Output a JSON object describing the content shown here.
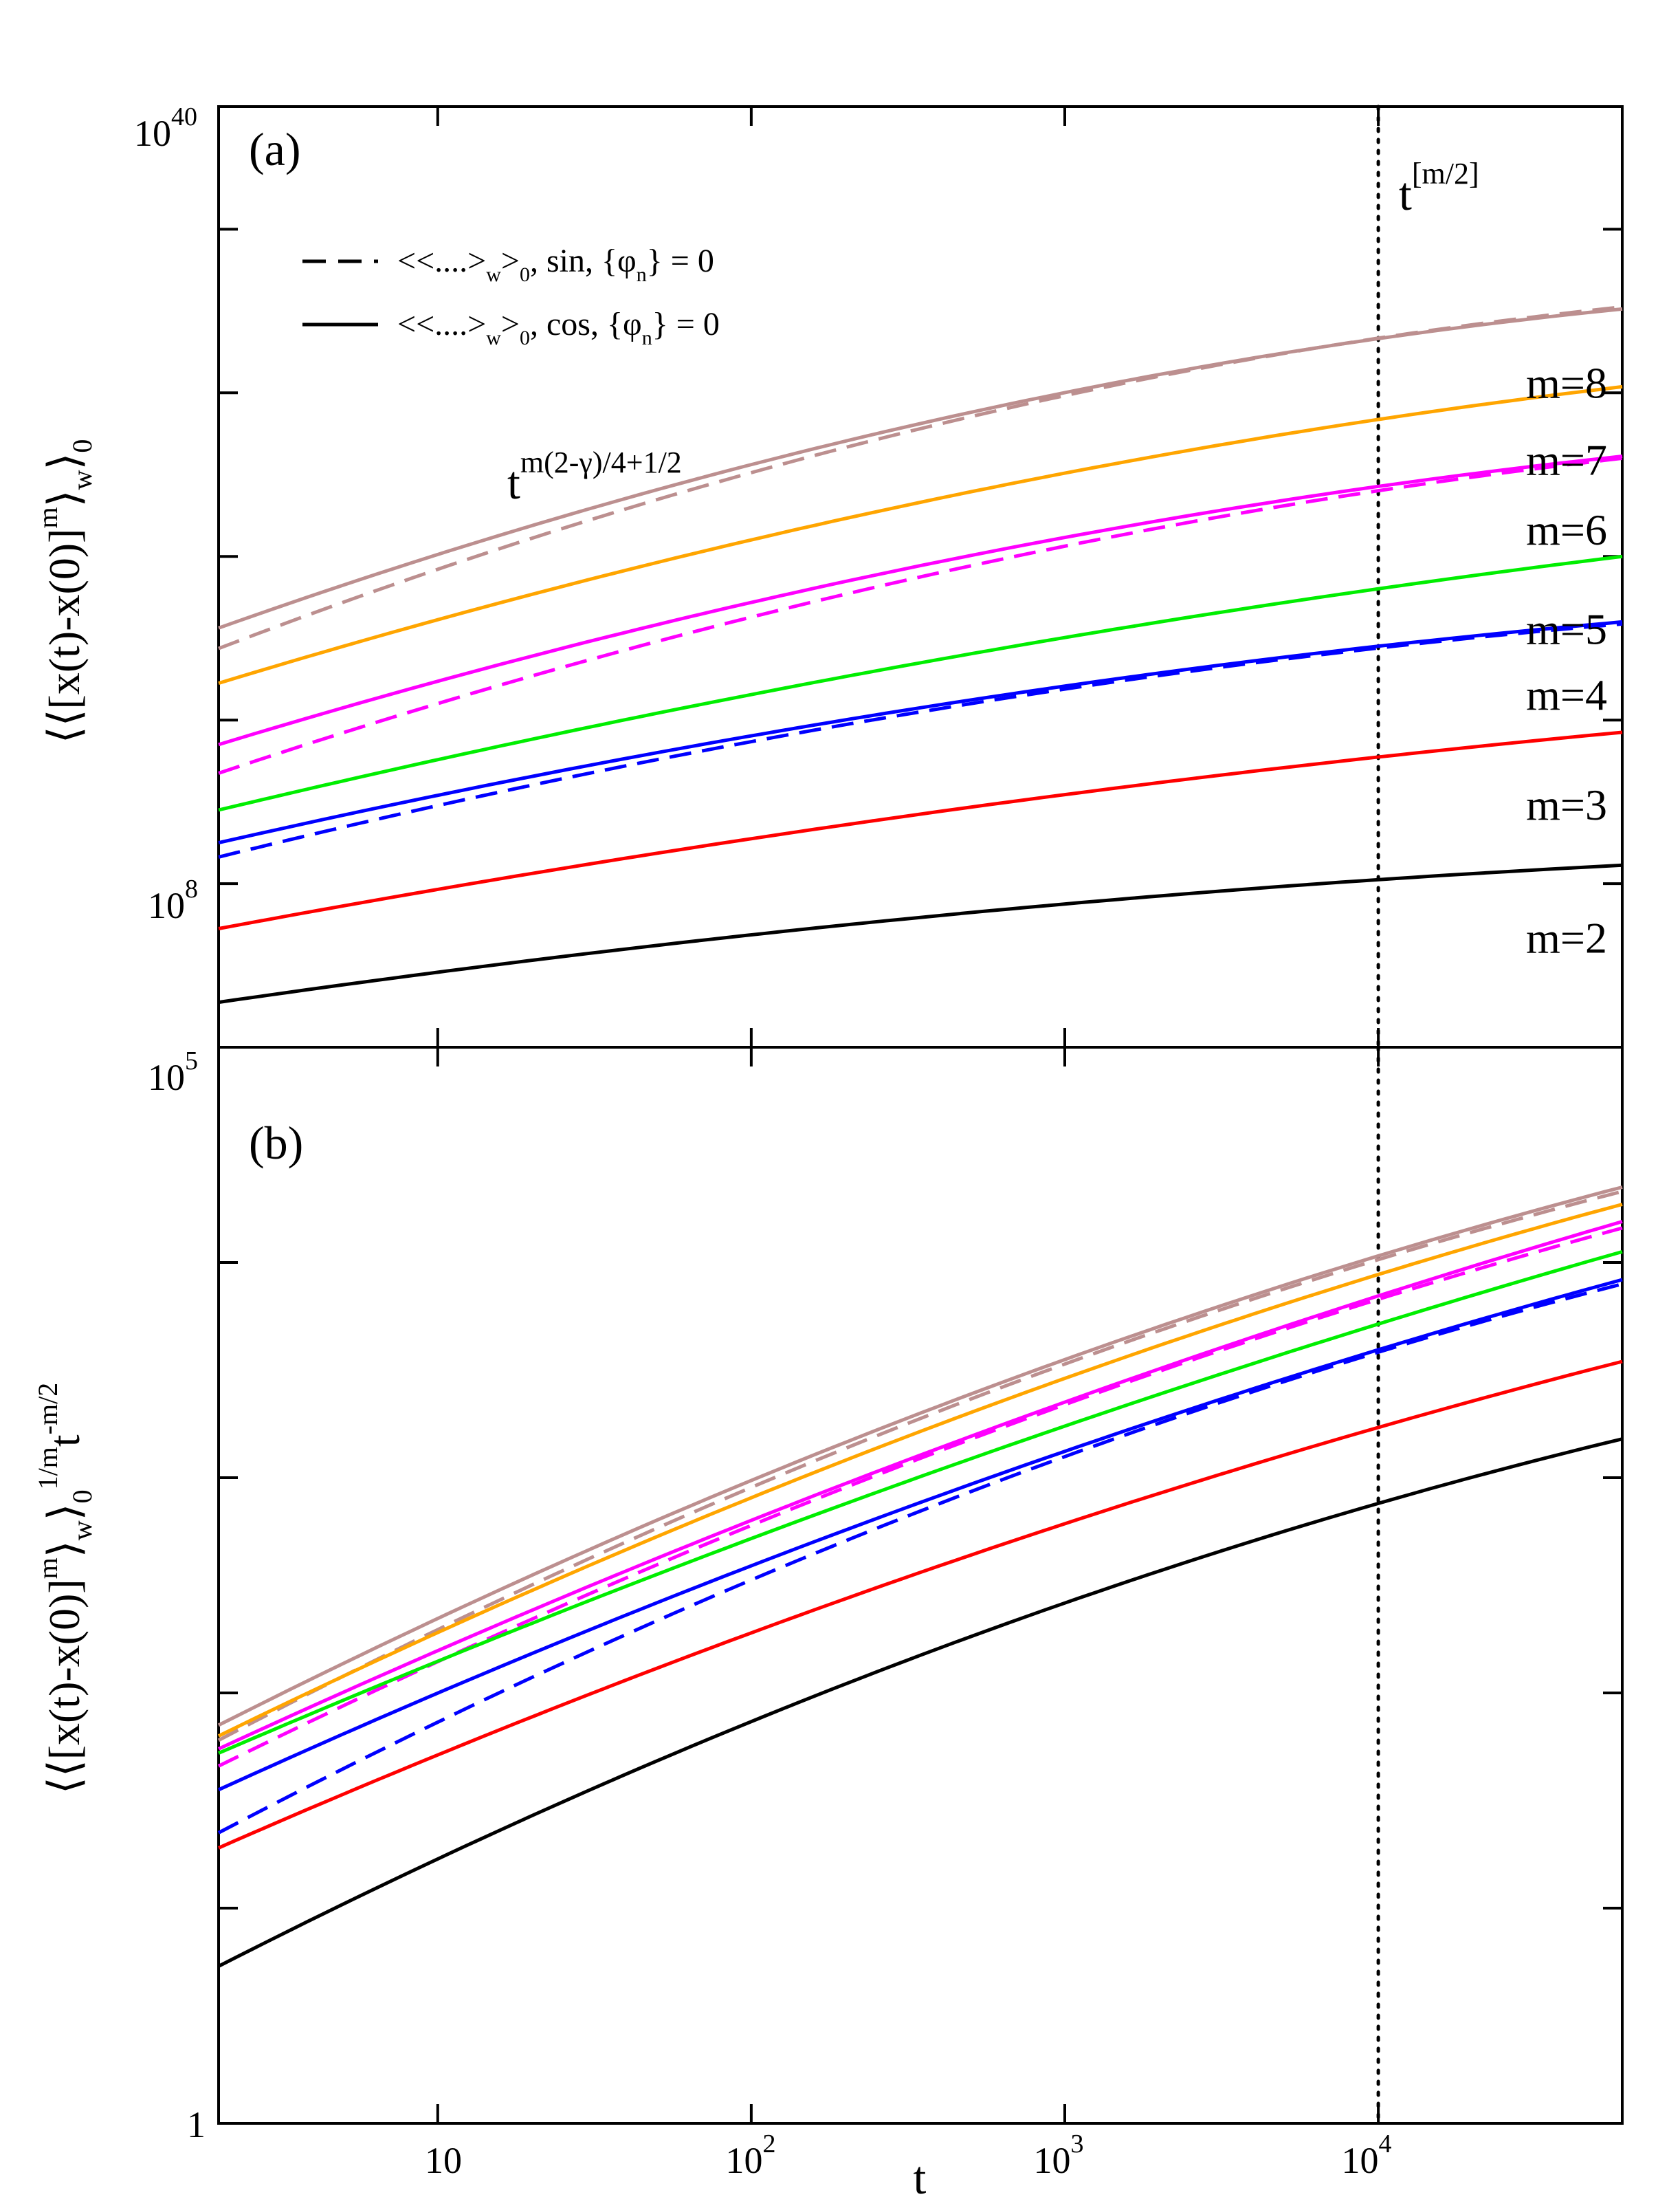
{
  "chart_data": [
    {
      "type": "line",
      "panel": "(a)",
      "x_scale": "log",
      "xlim": [
        2,
        60000
      ],
      "ylabel": "⟨⟨[x(t)-x(0)]^m⟩_w⟩_0",
      "ylabel_main": "⟨⟨[x(t)-x(0)]",
      "ylabel_sup": "m",
      "ylabel_mid": "⟩",
      "ylabel_sub1": "w",
      "ylabel_end": "⟩",
      "ylabel_sub2": "0",
      "y_scale": "log",
      "ylim_log10": [
        0,
        46
      ],
      "y_tick_labels": [
        {
          "value_log10": 40,
          "base": "10",
          "exp": "40"
        },
        {
          "value_log10": 8,
          "base": "10",
          "exp": "8"
        }
      ],
      "legend": [
        {
          "style": "dashed",
          "text_a": "<<....>",
          "sub_a": "w",
          "text_b": ">",
          "sub_b": "0",
          "text_c": ", sin, {φ",
          "sub_c": "n",
          "text_d": "} = 0"
        },
        {
          "style": "solid",
          "text_a": "<<....>",
          "sub_a": "w",
          "text_b": ">",
          "sub_b": "0",
          "text_c": ", cos, {φ",
          "sub_c": "n",
          "text_d": "} = 0"
        }
      ],
      "annotation_growth": {
        "base": "t",
        "exp": "m(2-γ)/4+1/2"
      },
      "annotation_vline": {
        "base": "t",
        "exp": "[m/2]"
      },
      "vline_x": 10000,
      "series": [
        {
          "name": "m=8",
          "label": "m=8",
          "color": "#bc8f8f",
          "label_t": 0.6,
          "solid": {
            "x": [
              2,
              60000
            ],
            "y": [
              20.5,
              36.1
            ],
            "bulge": 2.2
          },
          "dashed": {
            "x": [
              2,
              60000
            ],
            "y": [
              19.5,
              36.2
            ],
            "bulge": 2.4
          }
        },
        {
          "name": "m=7",
          "label": "m=7",
          "color": "#ffa500",
          "label_t": 0.55,
          "solid": {
            "x": [
              2,
              60000
            ],
            "y": [
              17.8,
              32.3
            ],
            "bulge": 1.6
          }
        },
        {
          "name": "m=6",
          "label": "m=6",
          "color": "#ff00ff",
          "label_t": 0.5,
          "solid": {
            "x": [
              2,
              60000
            ],
            "y": [
              14.8,
              28.9
            ],
            "bulge": 1.7
          },
          "dashed": {
            "x": [
              2,
              60000
            ],
            "y": [
              13.4,
              28.8
            ],
            "bulge": 1.9
          }
        },
        {
          "name": "m=5",
          "label": "m=5",
          "color": "#00ee00",
          "label_t": 0.42,
          "solid": {
            "x": [
              2,
              60000
            ],
            "y": [
              11.6,
              24.0
            ],
            "bulge": 1.0
          }
        },
        {
          "name": "m=4",
          "label": "m=4",
          "color": "#0000ff",
          "label_t": 0.35,
          "solid": {
            "x": [
              2,
              60000
            ],
            "y": [
              10.0,
              20.8
            ],
            "bulge": 1.2
          },
          "dashed": {
            "x": [
              2,
              60000
            ],
            "y": [
              9.3,
              20.7
            ],
            "bulge": 1.4
          }
        },
        {
          "name": "m=3",
          "label": "m=3",
          "color": "#ff0000",
          "label_t": 0.28,
          "solid": {
            "x": [
              2,
              60000
            ],
            "y": [
              5.8,
              15.4
            ],
            "bulge": 0.8
          }
        },
        {
          "name": "m=2",
          "label": "m=2",
          "color": "#000000",
          "label_t": 0.18,
          "solid": {
            "x": [
              2,
              60000
            ],
            "y": [
              2.2,
              8.9
            ],
            "bulge": 0.8
          }
        }
      ]
    },
    {
      "type": "line",
      "panel": "(b)",
      "x_scale": "log",
      "xlim": [
        2,
        60000
      ],
      "xlabel": "t",
      "x_tick_labels": [
        {
          "value": 10,
          "base": "10",
          "exp": ""
        },
        {
          "value": 100,
          "base": "10",
          "exp": "2"
        },
        {
          "value": 1000,
          "base": "10",
          "exp": "3"
        },
        {
          "value": 10000,
          "base": "10",
          "exp": "4"
        }
      ],
      "ylabel": "⟨⟨[x(t)-x(0)]^m⟩_w⟩_0^(1/m) t^(-m/2)",
      "ylabel_main": "⟨⟨[x(t)-x(0)]",
      "ylabel_sup": "m",
      "ylabel_mid": "⟩",
      "ylabel_sub1": "w",
      "ylabel_end": "⟩",
      "ylabel_sub2": "0",
      "ylabel_sup2": "1/m",
      "ylabel_t": "t",
      "ylabel_sup3": "-m/2",
      "y_scale": "log",
      "ylim_log10": [
        0,
        5
      ],
      "y_tick_labels": [
        {
          "value_log10": 5,
          "base": "10",
          "exp": "5"
        },
        {
          "value_log10": 0,
          "base": "1",
          "exp": ""
        }
      ],
      "vline_x": 10000,
      "series": [
        {
          "name": "m=8",
          "color": "#bc8f8f",
          "solid": {
            "x": [
              2,
              60000
            ],
            "y": [
              1.85,
              4.35
            ],
            "bulge": 0.2
          },
          "dashed": {
            "x": [
              2,
              60000
            ],
            "y": [
              1.78,
              4.33
            ],
            "bulge": 0.22
          }
        },
        {
          "name": "m=7",
          "color": "#ffa500",
          "solid": {
            "x": [
              2,
              60000
            ],
            "y": [
              1.8,
              4.27
            ],
            "bulge": 0.18
          }
        },
        {
          "name": "m=6",
          "color": "#ff00ff",
          "solid": {
            "x": [
              2,
              60000
            ],
            "y": [
              1.74,
              4.19
            ],
            "bulge": 0.14
          },
          "dashed": {
            "x": [
              2,
              60000
            ],
            "y": [
              1.66,
              4.16
            ],
            "bulge": 0.18
          }
        },
        {
          "name": "m=5",
          "color": "#00ee00",
          "solid": {
            "x": [
              2,
              60000
            ],
            "y": [
              1.72,
              4.05
            ],
            "bulge": 0.12
          }
        },
        {
          "name": "m=4",
          "color": "#0000ff",
          "solid": {
            "x": [
              2,
              60000
            ],
            "y": [
              1.55,
              3.92
            ],
            "bulge": 0.15
          },
          "dashed": {
            "x": [
              2,
              60000
            ],
            "y": [
              1.35,
              3.9
            ],
            "bulge": 0.22
          }
        },
        {
          "name": "m=3",
          "color": "#ff0000",
          "solid": {
            "x": [
              2,
              60000
            ],
            "y": [
              1.28,
              3.54
            ],
            "bulge": 0.15
          }
        },
        {
          "name": "m=2",
          "color": "#000000",
          "solid": {
            "x": [
              2,
              60000
            ],
            "y": [
              0.73,
              3.18
            ],
            "bulge": 0.22
          }
        }
      ]
    }
  ]
}
